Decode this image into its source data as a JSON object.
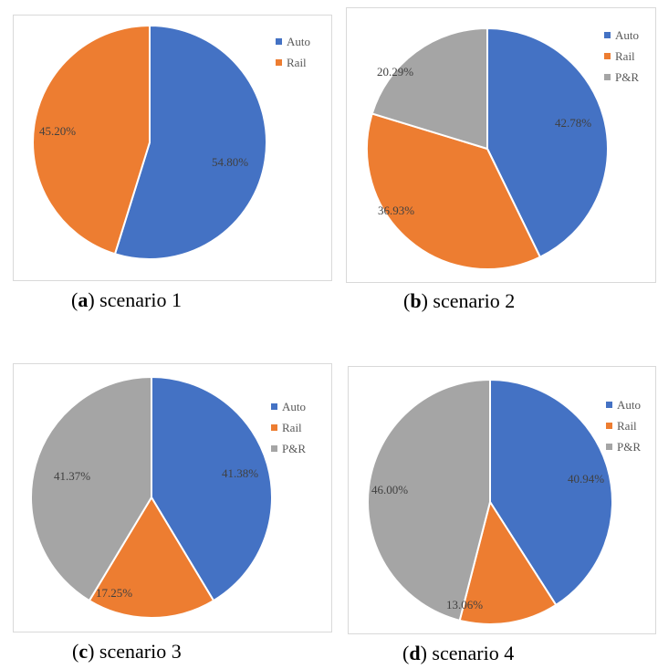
{
  "colors": {
    "Auto": "#4472C4",
    "Rail": "#ED7D31",
    "P&R": "#A5A5A5"
  },
  "captions": [
    {
      "letter": "a",
      "text": "scenario 1"
    },
    {
      "letter": "b",
      "text": "scenario 2"
    },
    {
      "letter": "c",
      "text": "scenario 3"
    },
    {
      "letter": "d",
      "text": "scenario 4"
    }
  ],
  "chart_data": [
    {
      "type": "pie",
      "title": "",
      "categories": [
        "Auto",
        "Rail"
      ],
      "values": [
        54.8,
        45.2
      ],
      "labels": [
        "54.80%",
        "45.20%"
      ],
      "legend": [
        "Auto",
        "Rail"
      ],
      "legend_position": "top-right"
    },
    {
      "type": "pie",
      "title": "",
      "categories": [
        "Auto",
        "Rail",
        "P&R"
      ],
      "values": [
        42.78,
        36.93,
        20.29
      ],
      "labels": [
        "42.78%",
        "36.93%",
        "20.29%"
      ],
      "legend": [
        "Auto",
        "Rail",
        "P&R"
      ],
      "legend_position": "top-right"
    },
    {
      "type": "pie",
      "title": "",
      "categories": [
        "Auto",
        "Rail",
        "P&R"
      ],
      "values": [
        41.38,
        17.25,
        41.37
      ],
      "labels": [
        "41.38%",
        "17.25%",
        "41.37%"
      ],
      "legend": [
        "Auto",
        "Rail",
        "P&R"
      ],
      "legend_position": "top-right"
    },
    {
      "type": "pie",
      "title": "",
      "categories": [
        "Auto",
        "Rail",
        "P&R"
      ],
      "values": [
        40.94,
        13.06,
        46.0
      ],
      "labels": [
        "40.94%",
        "13.06%",
        "46.00%"
      ],
      "legend": [
        "Auto",
        "Rail",
        "P&R"
      ],
      "legend_position": "top-right"
    }
  ]
}
